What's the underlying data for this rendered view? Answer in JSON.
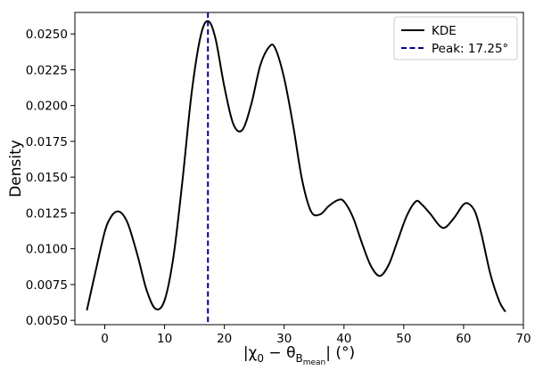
{
  "chart_data": {
    "type": "line",
    "xlabel": "|χ₀ − θ_B_mean| (°)",
    "xlabel_parts": {
      "pre": "|χ",
      "sub0": "0",
      "mid": " − θ",
      "subB": "B",
      "subsub": "mean",
      "post": "| (°)"
    },
    "ylabel": "Density",
    "xlim": [
      -5,
      70
    ],
    "ylim": [
      0.0047,
      0.0265
    ],
    "xticks": [
      0,
      10,
      20,
      30,
      40,
      50,
      60,
      70
    ],
    "xtick_labels": [
      "0",
      "10",
      "20",
      "30",
      "40",
      "50",
      "60",
      "70"
    ],
    "yticks": [
      0.005,
      0.0075,
      0.01,
      0.0125,
      0.015,
      0.0175,
      0.02,
      0.0225,
      0.025
    ],
    "ytick_labels": [
      "0.0050",
      "0.0075",
      "0.0100",
      "0.0125",
      "0.0150",
      "0.0175",
      "0.0200",
      "0.0225",
      "0.0250"
    ],
    "grid": false,
    "legend_position": "top-right",
    "series": [
      {
        "name": "KDE",
        "color": "#000000",
        "style": "solid",
        "x": [
          -3,
          -1.5,
          0,
          1,
          2,
          3,
          4,
          5.5,
          7,
          8.5,
          10,
          11.5,
          13,
          14.5,
          16,
          17.25,
          18.5,
          20,
          21.5,
          23,
          24.5,
          26,
          27.5,
          28.5,
          30,
          31.5,
          33,
          34.5,
          36,
          37.5,
          39,
          40,
          41.5,
          43,
          44.5,
          46,
          47.5,
          49,
          50.5,
          52,
          53,
          54.5,
          56,
          57,
          58.5,
          60,
          61,
          62,
          63,
          64.5,
          66,
          67
        ],
        "y": [
          0.0057,
          0.0085,
          0.0112,
          0.0122,
          0.0126,
          0.0124,
          0.0116,
          0.0095,
          0.0071,
          0.0058,
          0.0064,
          0.0095,
          0.0148,
          0.0208,
          0.0248,
          0.0259,
          0.0247,
          0.0213,
          0.0187,
          0.0183,
          0.0201,
          0.0228,
          0.0241,
          0.024,
          0.0219,
          0.0186,
          0.0148,
          0.0126,
          0.0124,
          0.013,
          0.0134,
          0.0133,
          0.0122,
          0.0104,
          0.0088,
          0.0081,
          0.0089,
          0.0106,
          0.0123,
          0.0133,
          0.0131,
          0.0124,
          0.0116,
          0.0115,
          0.0122,
          0.0131,
          0.0131,
          0.0125,
          0.011,
          0.0082,
          0.0063,
          0.0056
        ]
      },
      {
        "name": "Peak: 17.25°",
        "color": "#00008b",
        "style": "dashed",
        "vline_x": 17.25
      }
    ]
  }
}
